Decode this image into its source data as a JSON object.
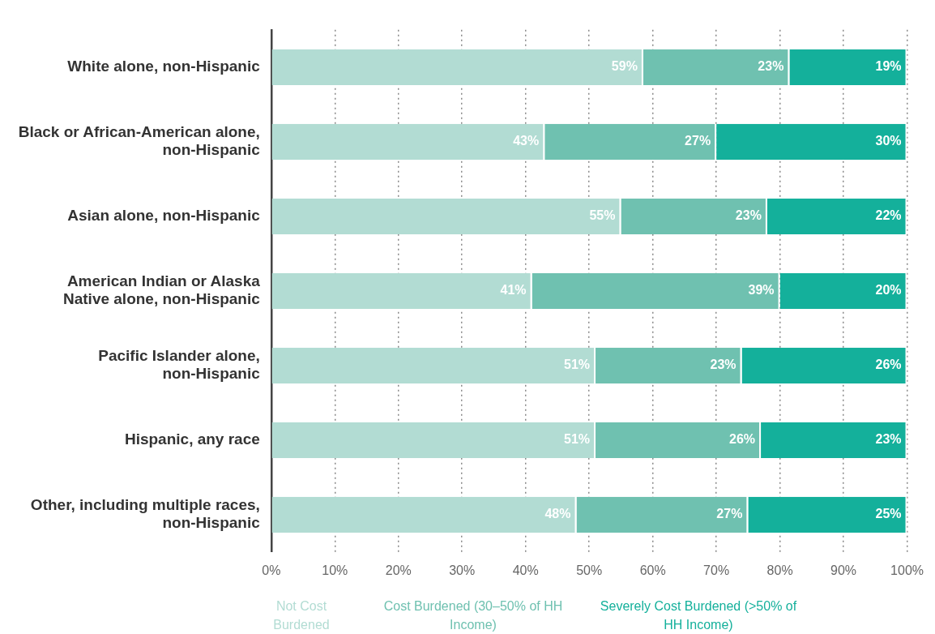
{
  "chart_data": {
    "type": "bar",
    "orientation": "horizontal",
    "stacked": true,
    "categories": [
      "White alone, non-Hispanic",
      "Black or African-American alone, non-Hispanic",
      "Asian alone, non-Hispanic",
      "American Indian or Alaska Native alone, non-Hispanic",
      "Pacific Islander alone, non-Hispanic",
      "Hispanic, any race",
      "Other, including multiple races, non-Hispanic"
    ],
    "series": [
      {
        "name": "Not Cost Burdened",
        "color": "#b2dcd3",
        "values": [
          58.5,
          43,
          55,
          41,
          51,
          51,
          48
        ],
        "value_labels": [
          "59%",
          "43%",
          "55%",
          "41%",
          "51%",
          "51%",
          "48%"
        ]
      },
      {
        "name": "Cost Burdened (30–50% of HH Income)",
        "color": "#6fc1b0",
        "values": [
          23,
          27,
          23,
          39,
          23,
          26,
          27
        ],
        "value_labels": [
          "23%",
          "27%",
          "23%",
          "39%",
          "23%",
          "26%",
          "27%"
        ]
      },
      {
        "name": "Severely Cost Burdened (>50% of HH Income)",
        "color": "#14b09b",
        "values": [
          18.5,
          30,
          22,
          20,
          26,
          23,
          25
        ],
        "value_labels": [
          "19%",
          "30%",
          "22%",
          "20%",
          "26%",
          "23%",
          "25%"
        ]
      }
    ],
    "xlim": [
      0,
      100
    ],
    "xticks": [
      {
        "value": 0,
        "label": "0%"
      },
      {
        "value": 10,
        "label": "10%"
      },
      {
        "value": 20,
        "label": "20%"
      },
      {
        "value": 30,
        "label": "30%"
      },
      {
        "value": 40,
        "label": "40%"
      },
      {
        "value": 50,
        "label": "50%"
      },
      {
        "value": 60,
        "label": "60%"
      },
      {
        "value": 70,
        "label": "70%"
      },
      {
        "value": 80,
        "label": "80%"
      },
      {
        "value": 90,
        "label": "90%"
      },
      {
        "value": 100,
        "label": "100%"
      }
    ],
    "grid": "x",
    "legend": "bottom"
  }
}
